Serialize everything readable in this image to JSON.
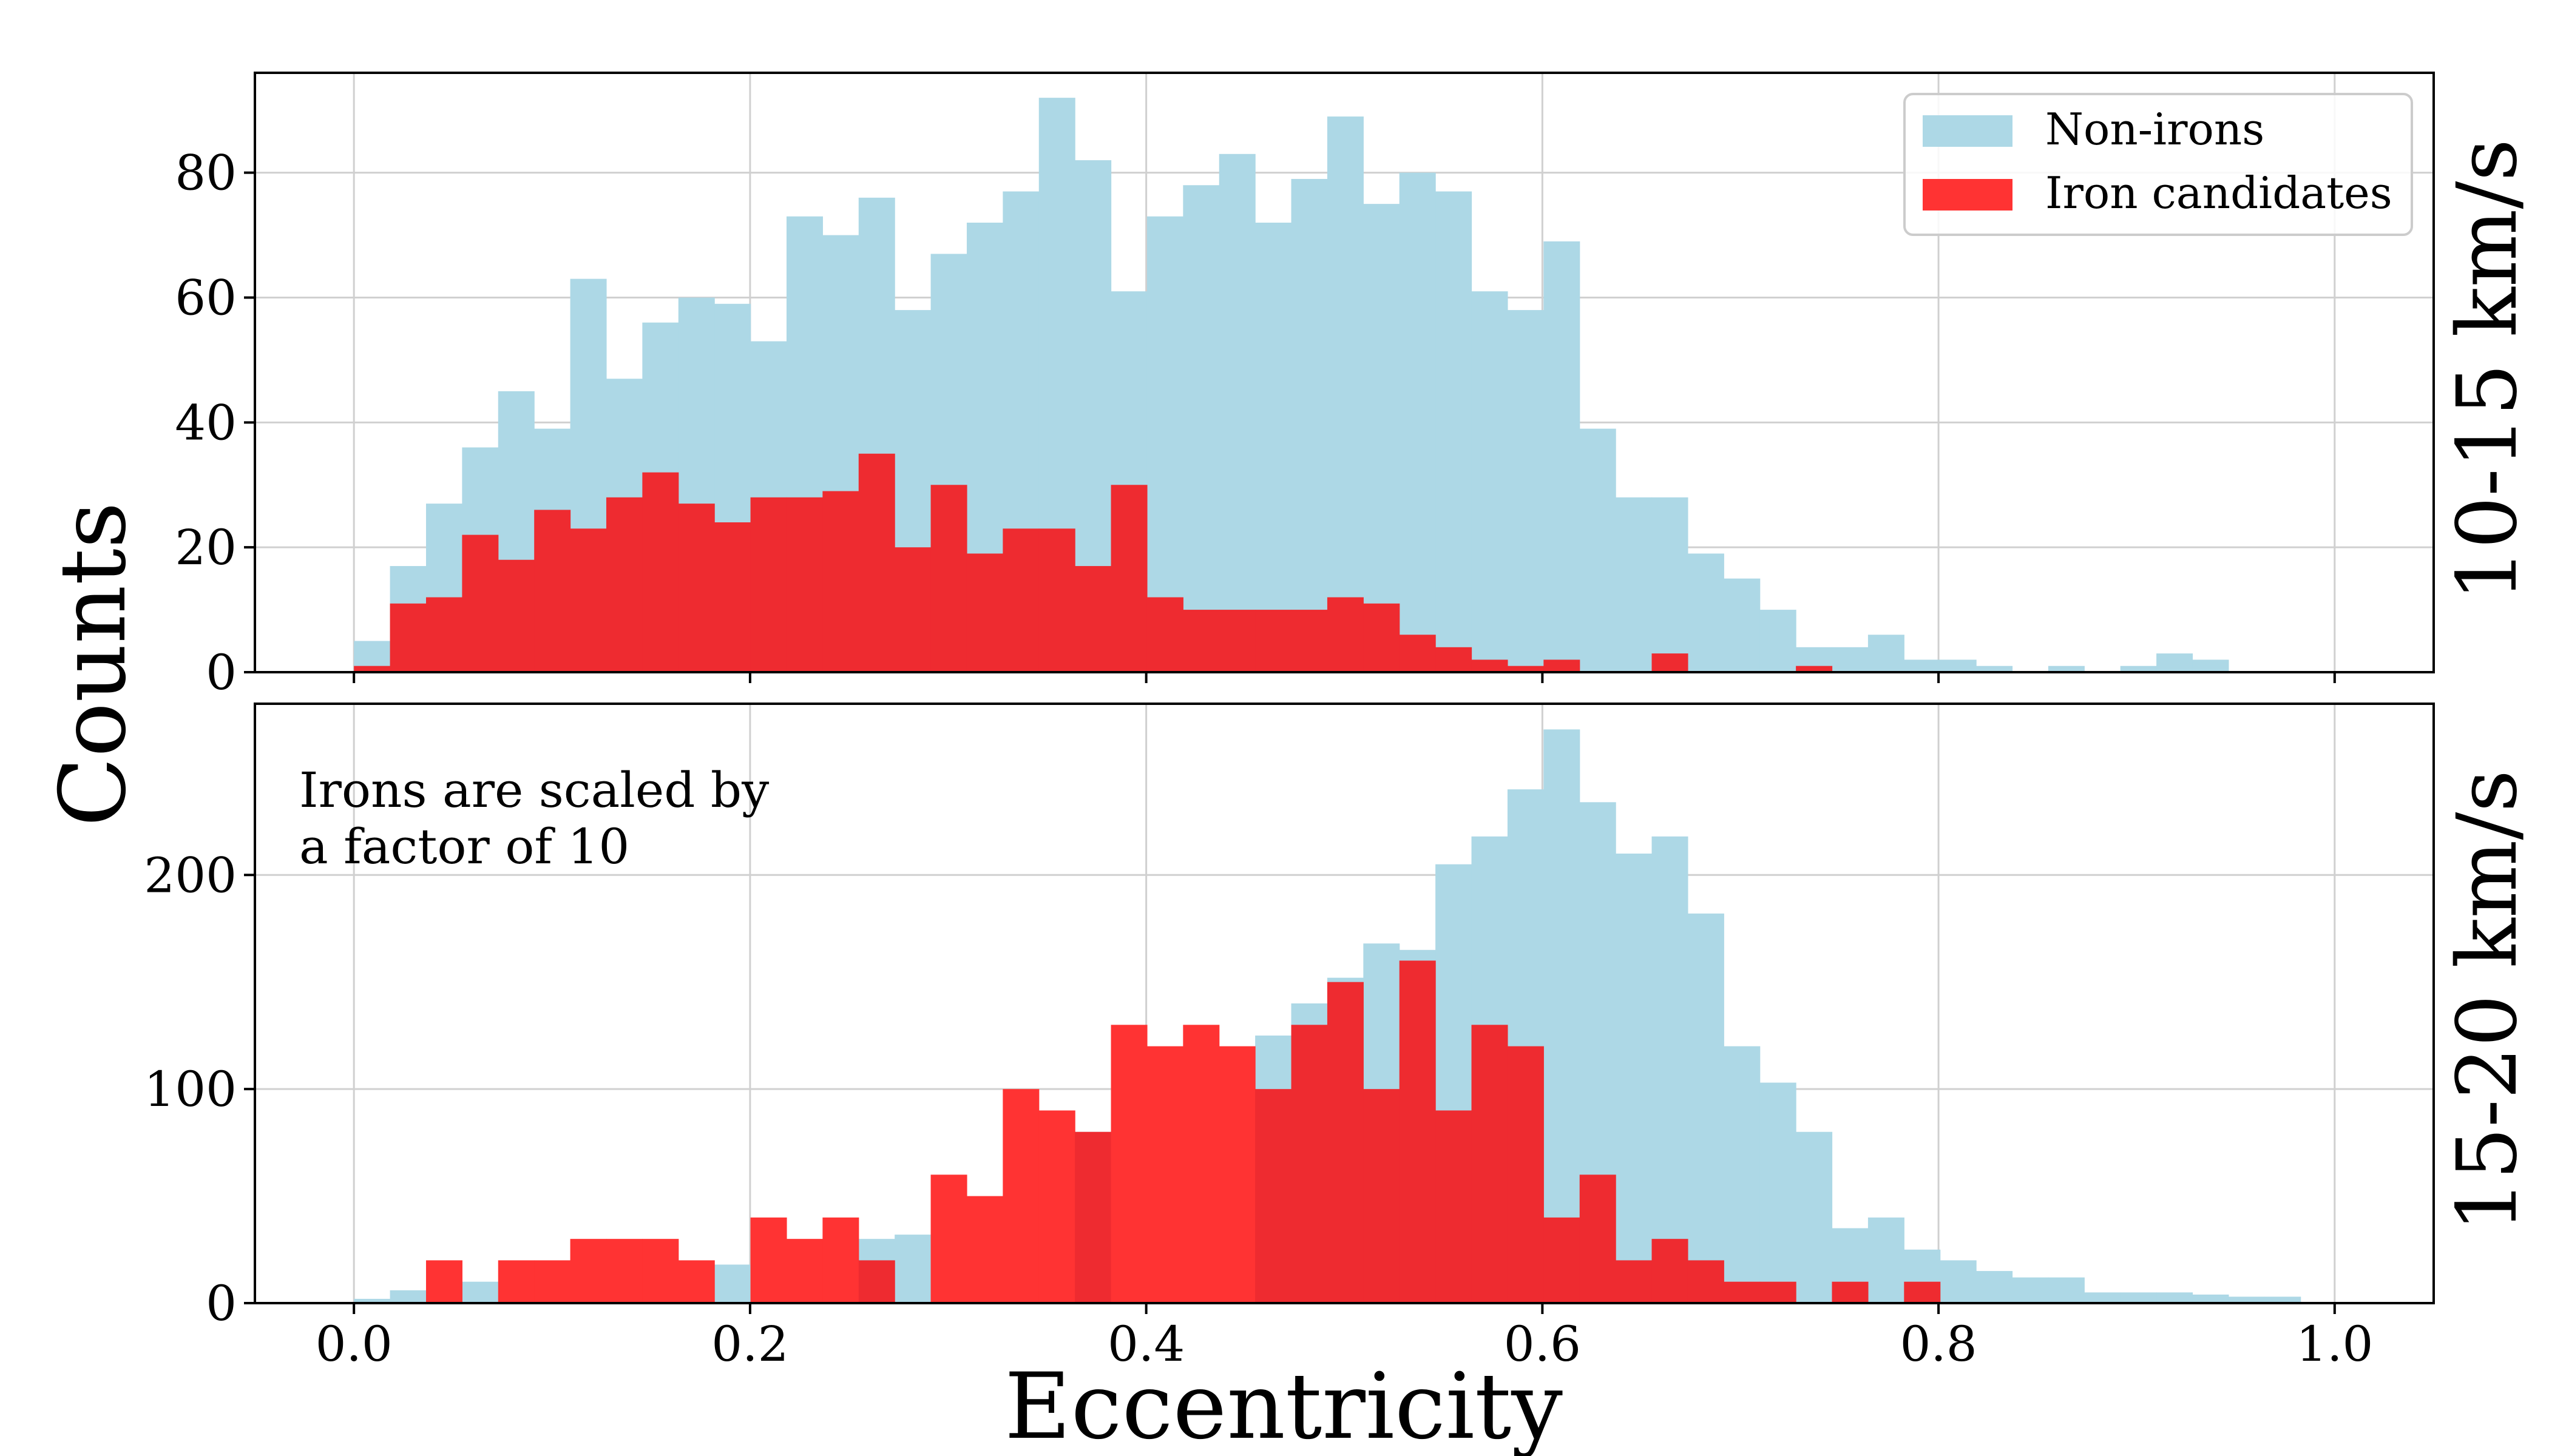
{
  "chart_data": {
    "type": "bar",
    "xlabel": "Eccentricity",
    "ylabel": "Counts",
    "x_ticks": [
      "0.0",
      "0.2",
      "0.4",
      "0.6",
      "0.8",
      "1.0"
    ],
    "xlim": [
      -0.05,
      1.05
    ],
    "bin_width": 0.0182,
    "bin_start": 0.0,
    "colors": {
      "non_irons": "#add8e6",
      "irons": "#ff3333",
      "overlap": "#ee2b30"
    },
    "legend": {
      "location": "top-right",
      "non_irons": "Non-irons",
      "irons": "Iron candidates"
    },
    "panels": [
      {
        "side_label": "10-15 km/s",
        "ylim": [
          0,
          96
        ],
        "y_ticks": [
          "0",
          "20",
          "40",
          "60",
          "80"
        ],
        "series": [
          {
            "name": "Non-irons",
            "values": [
              5,
              17,
              27,
              36,
              45,
              39,
              63,
              47,
              56,
              60,
              59,
              53,
              73,
              70,
              76,
              58,
              67,
              72,
              77,
              92,
              82,
              61,
              73,
              78,
              83,
              72,
              79,
              89,
              75,
              80,
              77,
              61,
              58,
              69,
              39,
              28,
              28,
              19,
              15,
              10,
              4,
              4,
              6,
              2,
              2,
              1,
              0,
              1,
              0,
              1,
              3,
              2,
              0,
              0,
              0
            ]
          },
          {
            "name": "Iron candidates",
            "values": [
              1,
              11,
              12,
              22,
              18,
              26,
              23,
              28,
              32,
              27,
              24,
              28,
              28,
              29,
              35,
              20,
              30,
              19,
              23,
              23,
              17,
              30,
              12,
              10,
              10,
              10,
              10,
              12,
              11,
              6,
              4,
              2,
              1,
              2,
              0,
              0,
              3,
              0,
              0,
              0,
              1,
              0,
              0,
              0,
              0,
              0,
              0,
              0,
              0,
              0,
              0,
              0,
              0,
              0,
              0
            ]
          }
        ]
      },
      {
        "side_label": "15-20 km/s",
        "annotation": [
          "Irons are scaled by",
          "a factor of 10"
        ],
        "ylim": [
          0,
          280
        ],
        "y_ticks": [
          "0",
          "100",
          "200"
        ],
        "series": [
          {
            "name": "Non-irons",
            "values": [
              2,
              6,
              12,
              10,
              10,
              15,
              15,
              20,
              20,
              15,
              18,
              27,
              25,
              30,
              30,
              32,
              40,
              45,
              50,
              60,
              80,
              90,
              100,
              95,
              105,
              125,
              140,
              152,
              168,
              165,
              205,
              218,
              240,
              268,
              234,
              210,
              218,
              182,
              120,
              103,
              80,
              35,
              40,
              25,
              20,
              15,
              12,
              12,
              5,
              5,
              5,
              4,
              3,
              3,
              0
            ]
          },
          {
            "name": "Iron candidates",
            "values": [
              0,
              0,
              20,
              0,
              20,
              20,
              30,
              30,
              30,
              20,
              0,
              40,
              30,
              40,
              20,
              0,
              60,
              50,
              100,
              90,
              80,
              130,
              120,
              130,
              120,
              100,
              130,
              150,
              100,
              160,
              90,
              130,
              120,
              40,
              60,
              20,
              30,
              20,
              10,
              10,
              0,
              10,
              0,
              10,
              0,
              0,
              0,
              0,
              0,
              0,
              0,
              0,
              0,
              0,
              0
            ]
          }
        ]
      }
    ]
  }
}
